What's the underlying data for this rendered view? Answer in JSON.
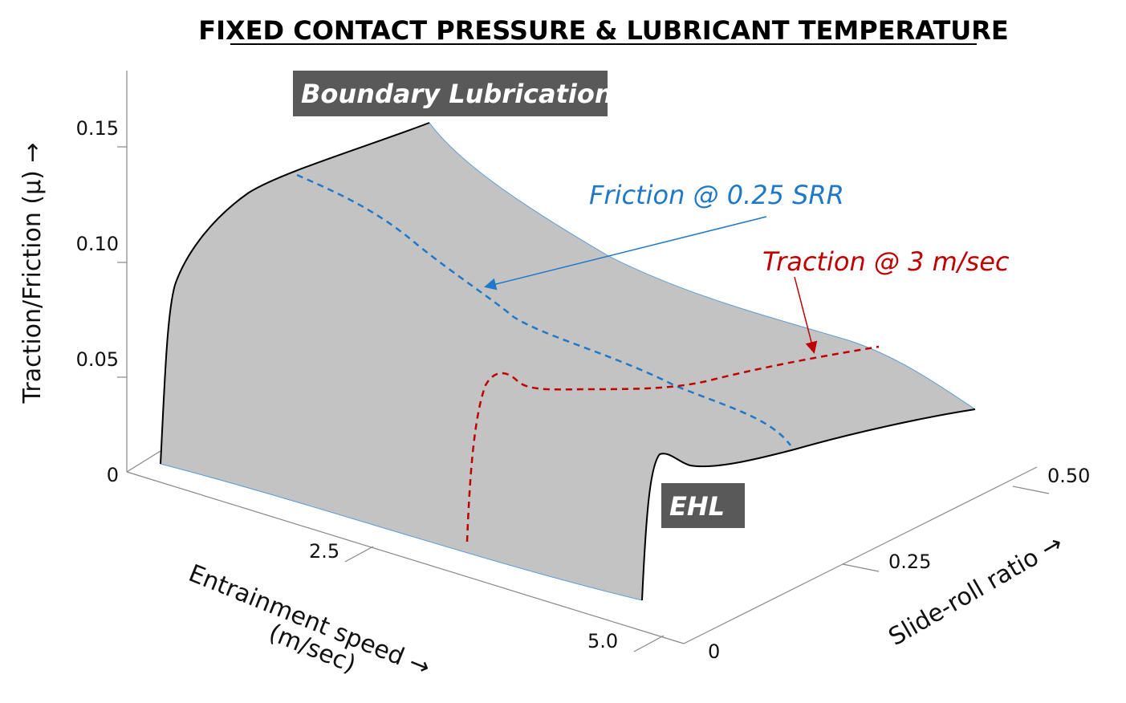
{
  "chart_data": {
    "type": "surface",
    "title": "FIXED CONTACT PRESSURE & LUBRICANT TEMPERATURE",
    "zlabel": "Traction/Friction (μ) →",
    "xlabel_line1": "Entrainment speed →",
    "xlabel_line2": "(m/sec)",
    "ylabel": "Slide-roll ratio →",
    "z_ticks": [
      "0",
      "0.05",
      "0.10",
      "0.15"
    ],
    "x_ticks": [
      "2.5",
      "5.0"
    ],
    "y_ticks": [
      "0",
      "0.25",
      "0.50"
    ],
    "zlim": [
      0,
      0.15
    ],
    "xlim": [
      0,
      5.0
    ],
    "ylim": [
      0,
      0.5
    ],
    "regions": {
      "high": "Boundary Lubrication",
      "low": "EHL"
    },
    "annotations": {
      "friction": "Friction @ 0.25 SRR",
      "traction": "Traction @ 3 m/sec"
    },
    "colors": {
      "surface": "#c3c3c3",
      "friction": "#1f78c8",
      "traction": "#c00000",
      "label_box": "#595959"
    }
  }
}
